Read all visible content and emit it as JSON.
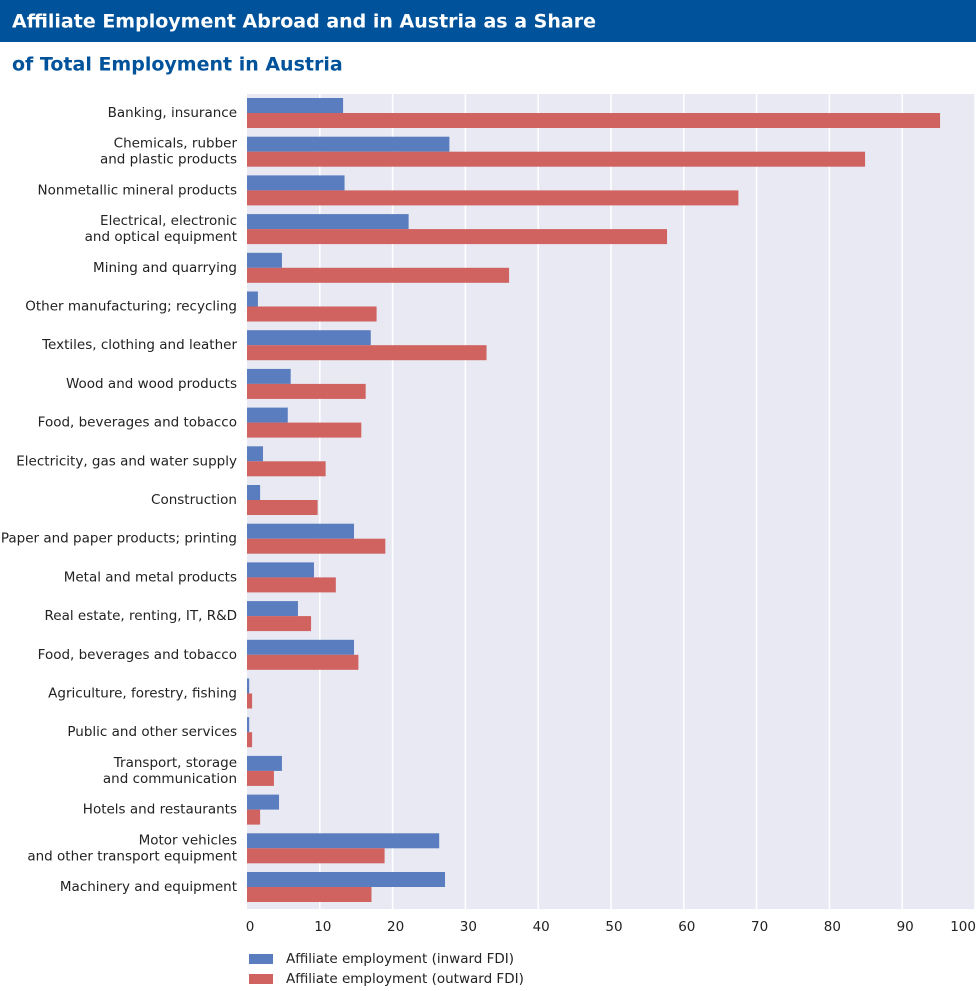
{
  "chart_data": {
    "type": "barh",
    "title": [
      "Affiliate Employment Abroad and in Austria as a Share",
      "of Total Employment in Austria"
    ],
    "categories": [
      "Banking, insurance",
      "Chemicals, rubber\nand plastic products",
      "Nonmetallic mineral products",
      "Electrical, electronic\nand optical equipment",
      "Mining and quarrying",
      "Other manufacturing; recycling",
      "Textiles, clothing and leather",
      "Wood and wood products",
      "Food, beverages and tobacco",
      "Electricity, gas and water supply",
      "Construction",
      "Paper and paper products; printing",
      "Metal and metal products",
      "Real estate, renting, IT, R&D",
      "Food, beverages and tobacco",
      "Agriculture, forestry, fishing",
      "Public and other services",
      "Transport, storage\nand communication",
      "Hotels and restaurants",
      "Motor vehicles\nand other transport equipment",
      "Machinery and equipment"
    ],
    "series": [
      {
        "name": "Affiliate employment (inward FDI)",
        "color": "#5a7dbf",
        "values": [
          13.2,
          27.8,
          13.4,
          22.2,
          4.8,
          1.5,
          17.0,
          6.0,
          5.6,
          2.2,
          1.8,
          14.7,
          9.2,
          7.0,
          14.7,
          0.3,
          0.3,
          4.8,
          4.4,
          26.4,
          27.2
        ]
      },
      {
        "name": "Affiliate employment (outward FDI)",
        "color": "#d0625f",
        "values": [
          95.2,
          84.9,
          67.5,
          57.7,
          36.0,
          17.8,
          32.9,
          16.3,
          15.7,
          10.8,
          9.7,
          19.0,
          12.2,
          8.8,
          15.3,
          0.7,
          0.7,
          3.7,
          1.8,
          18.9,
          17.1
        ]
      }
    ],
    "xlim": [
      0,
      100
    ],
    "xticks": [
      0,
      10,
      20,
      30,
      40,
      50,
      60,
      70,
      80,
      90,
      100
    ],
    "grid": true
  }
}
